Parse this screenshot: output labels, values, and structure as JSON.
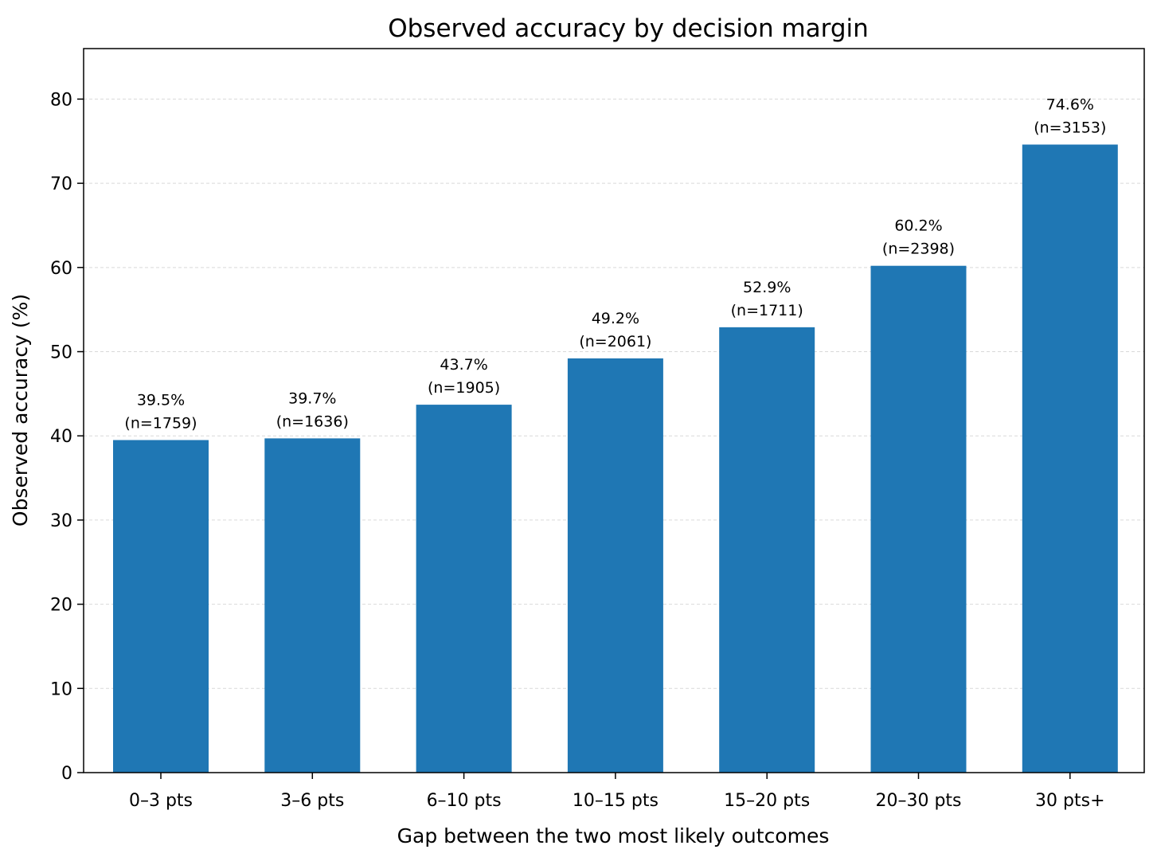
{
  "chart_data": {
    "type": "bar",
    "title": "Observed accuracy by decision margin",
    "xlabel": "Gap between the two most likely outcomes",
    "ylabel": "Observed accuracy (%)",
    "categories": [
      "0–3 pts",
      "3–6 pts",
      "6–10 pts",
      "10–15 pts",
      "15–20 pts",
      "20–30 pts",
      "30 pts+"
    ],
    "values": [
      39.5,
      39.7,
      43.7,
      49.2,
      52.9,
      60.2,
      74.6
    ],
    "value_labels": [
      "39.5%",
      "39.7%",
      "43.7%",
      "49.2%",
      "52.9%",
      "60.2%",
      "74.6%"
    ],
    "count_labels": [
      "(n=1759)",
      "(n=1636)",
      "(n=1905)",
      "(n=2061)",
      "(n=1711)",
      "(n=2398)",
      "(n=3153)"
    ],
    "ylim": [
      0,
      86
    ],
    "yticks": [
      0,
      10,
      20,
      30,
      40,
      50,
      60,
      70,
      80
    ],
    "grid": true,
    "bar_color": "#1f77b4"
  }
}
